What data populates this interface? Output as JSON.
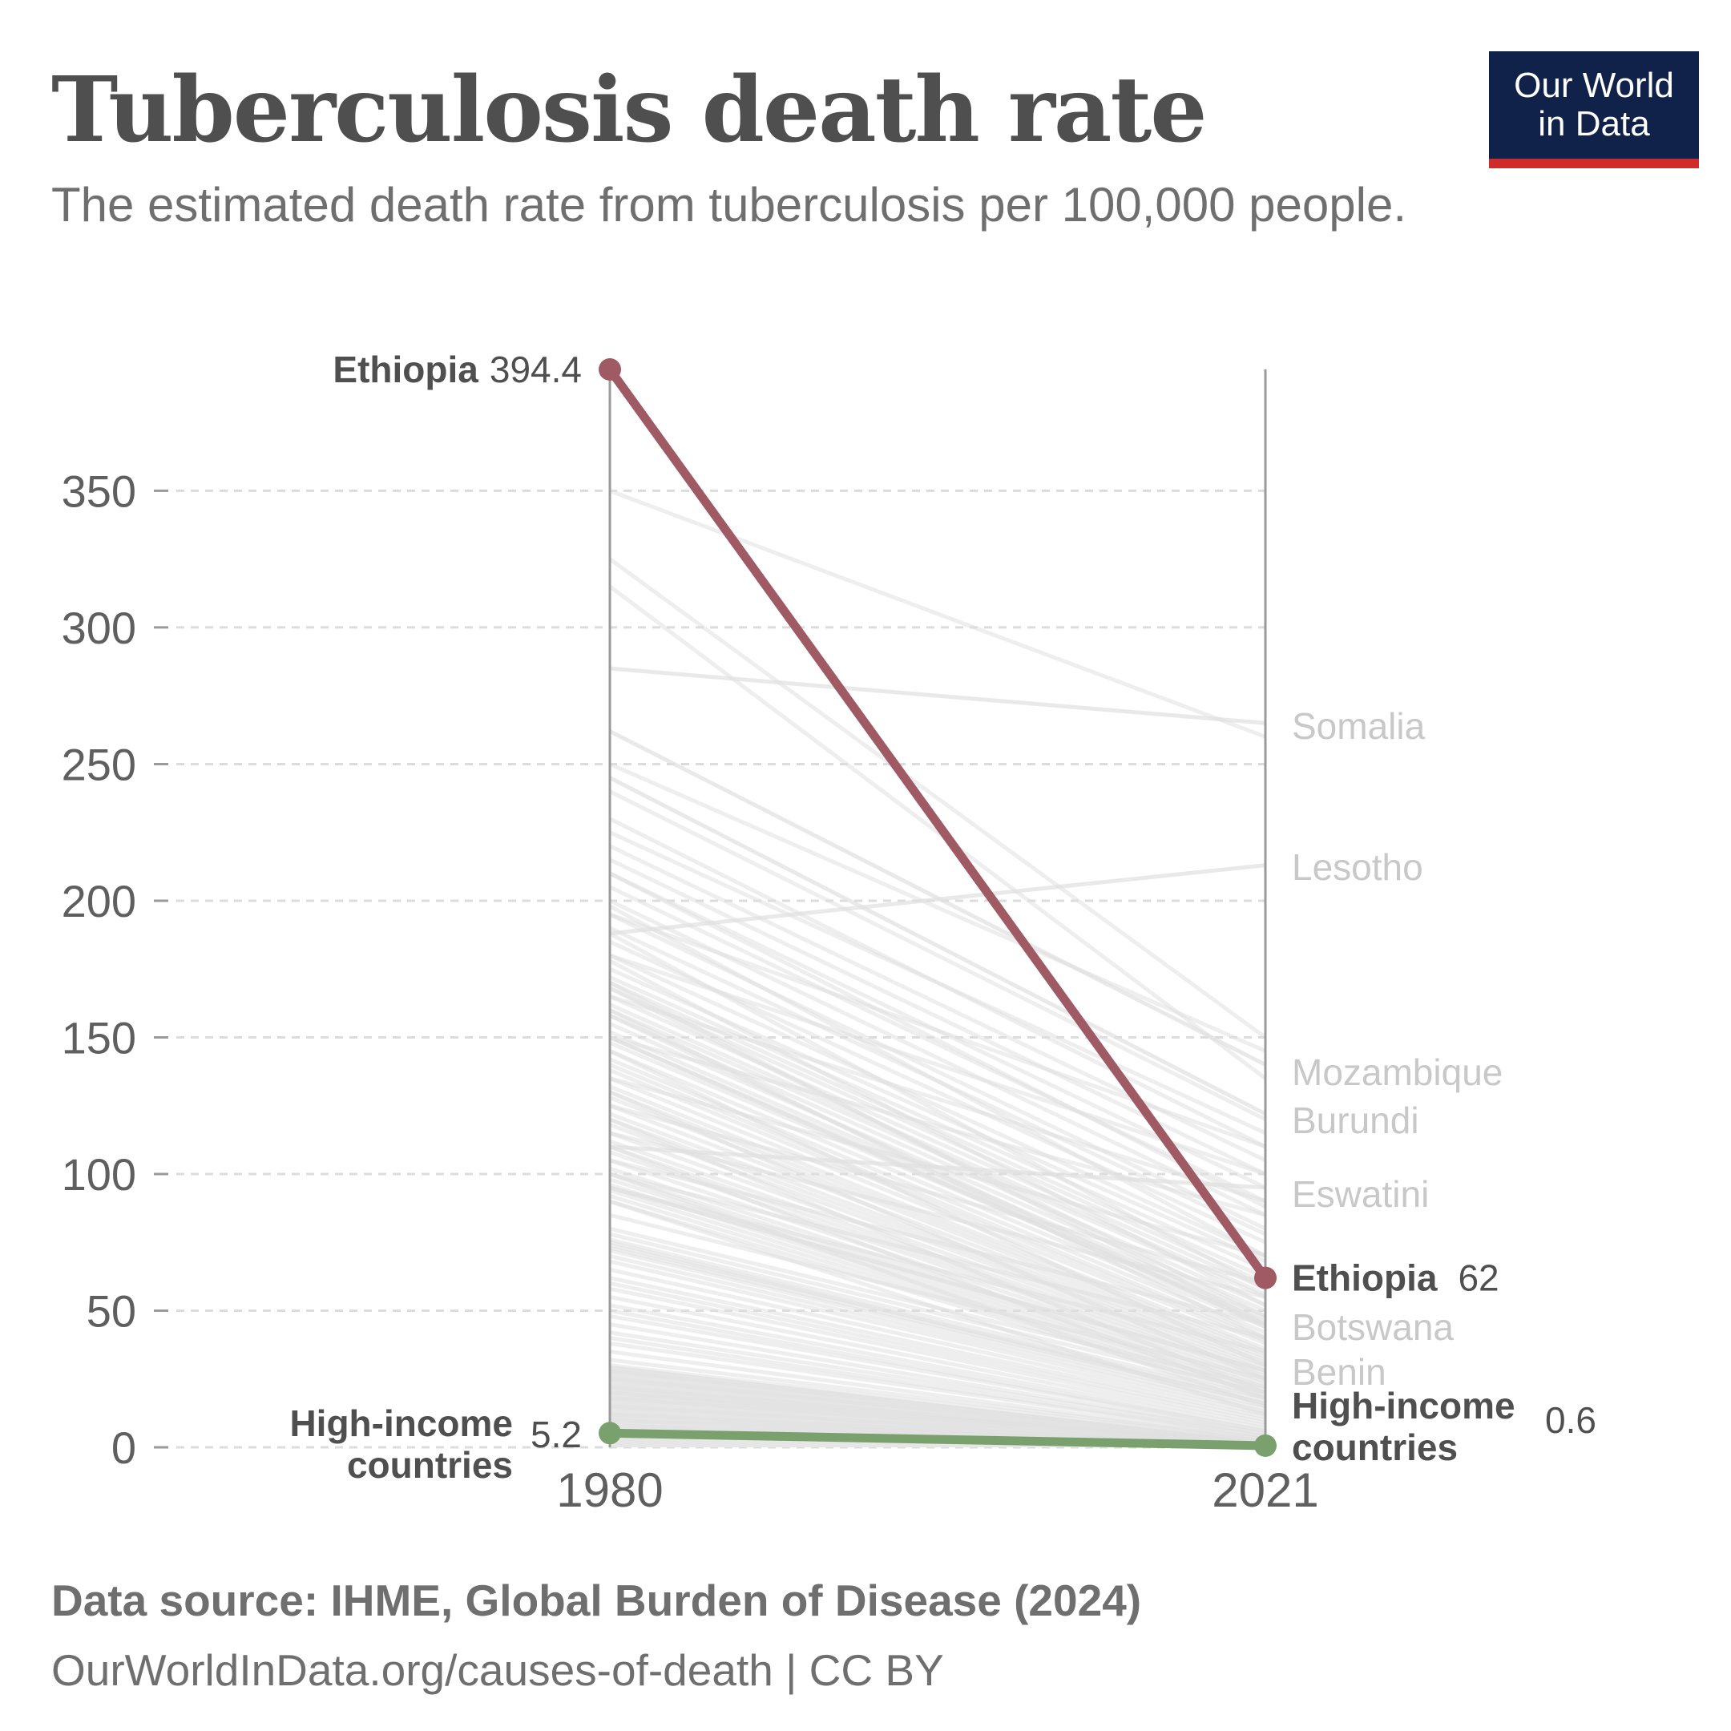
{
  "header": {
    "title": "Tuberculosis death rate",
    "subtitle": "The estimated death rate from tuberculosis per 100,000 people."
  },
  "logo": {
    "line1": "Our World",
    "line2": "in Data"
  },
  "footer": {
    "source": "Data source: IHME, Global Burden of Disease (2024)",
    "url": "OurWorldInData.org/causes-of-death | CC BY"
  },
  "colors": {
    "ethiopia": "#a05a64",
    "high_income": "#7aa06e",
    "background_lines": "#e0e0e0",
    "muted_label": "#c8c8c8",
    "axis": "#9a9a9a",
    "text": "#4f4f4f",
    "logo_bg": "#10214a",
    "logo_accent": "#cf2b2b"
  },
  "chart_data": {
    "type": "line",
    "x": [
      "1980",
      "2021"
    ],
    "ylim": [
      0,
      394.4
    ],
    "yticks": [
      0,
      50,
      100,
      150,
      200,
      250,
      300,
      350
    ],
    "grid": true,
    "highlighted": [
      {
        "name": "Ethiopia",
        "values": [
          394.4,
          62
        ],
        "value_labels": [
          "394.4",
          "62"
        ],
        "color": "#a05a64"
      },
      {
        "name": "High-income countries",
        "name_lines": [
          "High-income",
          "countries"
        ],
        "values": [
          5.2,
          0.6
        ],
        "value_labels": [
          "5.2",
          "0.6"
        ],
        "color": "#7aa06e"
      }
    ],
    "labeled_others": [
      {
        "name": "Somalia",
        "values": [
          285,
          265
        ]
      },
      {
        "name": "Lesotho",
        "values": [
          188,
          213
        ]
      },
      {
        "name": "Mozambique",
        "values": [
          262,
          140
        ]
      },
      {
        "name": "Burundi",
        "values": [
          245,
          122
        ]
      },
      {
        "name": "Eswatini",
        "values": [
          110,
          95
        ]
      },
      {
        "name": "Botswana",
        "values": [
          150,
          45
        ]
      },
      {
        "name": "Benin",
        "values": [
          95,
          28
        ]
      }
    ],
    "others": [
      [
        350,
        260
      ],
      [
        325,
        150
      ],
      [
        315,
        135
      ],
      [
        240,
        120
      ],
      [
        230,
        110
      ],
      [
        220,
        105
      ],
      [
        215,
        100
      ],
      [
        210,
        95
      ],
      [
        205,
        90
      ],
      [
        200,
        85
      ],
      [
        195,
        80
      ],
      [
        190,
        78
      ],
      [
        185,
        75
      ],
      [
        180,
        70
      ],
      [
        175,
        68
      ],
      [
        172,
        65
      ],
      [
        170,
        62
      ],
      [
        168,
        60
      ],
      [
        165,
        58
      ],
      [
        162,
        56
      ],
      [
        160,
        55
      ],
      [
        158,
        52
      ],
      [
        155,
        50
      ],
      [
        152,
        48
      ],
      [
        150,
        47
      ],
      [
        148,
        46
      ],
      [
        145,
        44
      ],
      [
        142,
        42
      ],
      [
        140,
        40
      ],
      [
        138,
        39
      ],
      [
        135,
        38
      ],
      [
        132,
        36
      ],
      [
        130,
        35
      ],
      [
        128,
        34
      ],
      [
        125,
        33
      ],
      [
        122,
        32
      ],
      [
        120,
        31
      ],
      [
        118,
        30
      ],
      [
        115,
        29
      ],
      [
        112,
        28
      ],
      [
        110,
        27
      ],
      [
        108,
        26
      ],
      [
        105,
        25
      ],
      [
        102,
        24
      ],
      [
        100,
        23
      ],
      [
        98,
        22
      ],
      [
        96,
        21
      ],
      [
        94,
        20
      ],
      [
        92,
        19
      ],
      [
        90,
        18
      ],
      [
        75,
        16
      ],
      [
        72,
        15
      ],
      [
        70,
        14
      ],
      [
        68,
        13
      ],
      [
        65,
        12
      ],
      [
        62,
        11
      ],
      [
        60,
        10
      ],
      [
        58,
        9
      ],
      [
        55,
        8
      ],
      [
        52,
        7
      ],
      [
        50,
        6
      ],
      [
        48,
        6
      ],
      [
        45,
        5
      ],
      [
        42,
        5
      ],
      [
        40,
        4
      ],
      [
        38,
        4
      ],
      [
        35,
        3
      ],
      [
        32,
        3
      ],
      [
        30,
        2.5
      ],
      [
        28,
        2
      ],
      [
        25,
        2
      ],
      [
        22,
        1.5
      ],
      [
        20,
        1.5
      ],
      [
        18,
        1.2
      ],
      [
        15,
        1
      ],
      [
        12,
        1
      ],
      [
        10,
        0.8
      ],
      [
        8,
        0.7
      ],
      [
        6,
        0.5
      ],
      [
        4,
        0.4
      ],
      [
        195,
        110
      ],
      [
        180,
        100
      ],
      [
        165,
        90
      ],
      [
        150,
        85
      ],
      [
        135,
        70
      ],
      [
        125,
        60
      ],
      [
        115,
        55
      ],
      [
        105,
        45
      ],
      [
        100,
        40
      ],
      [
        95,
        35
      ],
      [
        85,
        25
      ],
      [
        80,
        22
      ],
      [
        78,
        20
      ],
      [
        76,
        18
      ],
      [
        74,
        17
      ],
      [
        73,
        16
      ],
      [
        170,
        45
      ],
      [
        160,
        40
      ],
      [
        145,
        30
      ],
      [
        130,
        25
      ],
      [
        120,
        20
      ],
      [
        110,
        18
      ],
      [
        100,
        15
      ],
      [
        90,
        12
      ],
      [
        250,
        145
      ],
      [
        225,
        115
      ],
      [
        210,
        88
      ],
      [
        198,
        70
      ],
      [
        188,
        58
      ],
      [
        178,
        52
      ],
      [
        168,
        48
      ],
      [
        158,
        44
      ]
    ]
  }
}
